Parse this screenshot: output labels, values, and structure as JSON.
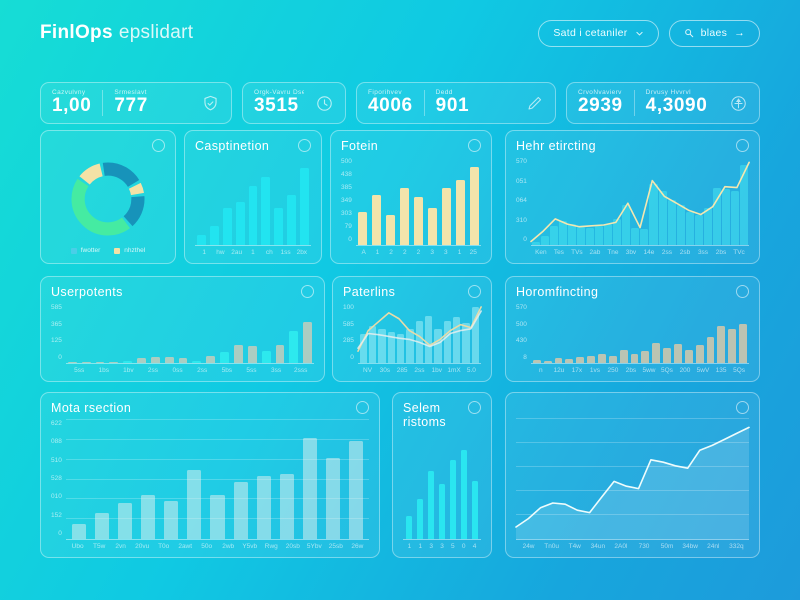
{
  "header": {
    "brand_bold": "FinlOps",
    "brand_light": "epslidart",
    "buttons": [
      {
        "label": "Satd i cetaniler",
        "icon": "chevron-down-icon"
      },
      {
        "label": "blaes",
        "icon": "search-icon",
        "trail": "→"
      }
    ]
  },
  "kpis": [
    {
      "stats": [
        {
          "label": "Cazvulvny",
          "value": "1,00"
        },
        {
          "label": "Srmeslavt",
          "value": "777"
        }
      ],
      "icon": "shield-icon"
    },
    {
      "stats": [
        {
          "label": "Orgk-Vavru Dse",
          "value": "3515"
        }
      ],
      "icon": "clock-icon"
    },
    {
      "stats": [
        {
          "label": "Fiporihvev",
          "value": "4006"
        },
        {
          "label": "Dedd",
          "value": "901"
        }
      ],
      "icon": "pencil-icon"
    },
    {
      "stats": [
        {
          "label": "CrvoNvavierv",
          "value": "2939"
        },
        {
          "label": "Drvusy Hvvrvl",
          "value": "4,3090"
        }
      ],
      "icon": "compass-icon"
    }
  ],
  "cards": {
    "donut": {
      "title": ""
    },
    "casptinetion": {
      "title": "Casptinetion"
    },
    "fotein": {
      "title": "Fotein"
    },
    "hehr": {
      "title": "Hehr etircting"
    },
    "userpotents": {
      "title": "Userpotents"
    },
    "paterlins": {
      "title": "Paterlins"
    },
    "horomfincting": {
      "title": "Horomfincting"
    },
    "mota": {
      "title": "Mota rsection"
    },
    "selem": {
      "title": "Selem ristoms"
    },
    "trend": {
      "title": ""
    }
  },
  "colors": {
    "accent_cyan": "#22e4f0",
    "cream": "#f2e4ab",
    "tan": "rgba(210,205,185,0.78)",
    "teal": "#1793ba",
    "green": "#45eba2",
    "white_line": "#eefcfc"
  },
  "chart_data": [
    {
      "id": "donut",
      "type": "donut",
      "start_pct": -15,
      "segments": [
        {
          "value": 12,
          "color": "#f4e2a6"
        },
        {
          "value": 20,
          "color": "#1793ba"
        },
        {
          "value": 6,
          "color": "#f4e2a6"
        },
        {
          "value": 16,
          "color": "#1793ba"
        },
        {
          "value": 46,
          "color": "#45eba2"
        }
      ],
      "legend": [
        {
          "label": "fwotter",
          "color": "#49cfe8"
        },
        {
          "label": "nhzthel",
          "color": "#f4e2a6"
        }
      ]
    },
    {
      "id": "casptinetion",
      "type": "bar",
      "color": "#22e4f0",
      "values": [
        12,
        22,
        42,
        50,
        68,
        78,
        42,
        58,
        88
      ],
      "xlabels": [
        "1",
        "hw",
        "2au",
        "1",
        "ch",
        "1ss",
        "2bx"
      ]
    },
    {
      "id": "fotein",
      "type": "bar",
      "color": "#f2e4ab",
      "values": [
        38,
        57,
        35,
        65,
        55,
        42,
        65,
        75,
        90
      ],
      "xlabels": [
        "A",
        "1",
        "2",
        "2",
        "2",
        "3",
        "3",
        "1",
        "25"
      ],
      "yticks": [
        "500",
        "438",
        "385",
        "349",
        "303",
        "79",
        "0"
      ]
    },
    {
      "id": "hehr",
      "type": "combo",
      "color": "rgba(70,228,240,0.55)",
      "bars": [
        3,
        10,
        22,
        28,
        24,
        21,
        20,
        22,
        24,
        30,
        46,
        20,
        18,
        70,
        62,
        52,
        46,
        38,
        34,
        42,
        66,
        64,
        62,
        92
      ],
      "lines": [
        {
          "name": "trend",
          "color": "#f4e7b0",
          "values": [
            4,
            16,
            30,
            24,
            21,
            22,
            23,
            26,
            48,
            20,
            74,
            56,
            48,
            40,
            35,
            44,
            67,
            66,
            95
          ]
        }
      ],
      "xlabels": [
        "Ken",
        "Tes",
        "TVs",
        "2ab",
        "Tne",
        "3bv",
        "14e",
        "2ss",
        "2sb",
        "3ss",
        "2bs",
        "TVc"
      ],
      "yticks": [
        "570",
        "051",
        "064",
        "310",
        "0"
      ]
    },
    {
      "id": "userpotents",
      "type": "bar",
      "values": [
        2,
        2,
        2,
        2,
        3,
        8,
        10,
        10,
        8,
        3,
        12,
        18,
        30,
        28,
        20,
        30,
        55,
        70
      ],
      "colors": [
        "rgba(210,205,185,0.78)",
        "rgba(210,205,185,0.78)",
        "rgba(210,205,185,0.78)",
        "rgba(210,205,185,0.78)",
        "#2de9ee",
        "rgba(210,205,185,0.78)",
        "rgba(210,205,185,0.78)",
        "rgba(210,205,185,0.78)",
        "rgba(210,205,185,0.78)",
        "#2de9ee",
        "rgba(210,205,185,0.78)",
        "#2de9ee",
        "rgba(210,205,185,0.78)",
        "rgba(210,205,185,0.78)",
        "#2de9ee",
        "rgba(210,205,185,0.78)",
        "#2de9ee",
        "rgba(210,205,185,0.78)"
      ],
      "xlabels": [
        "5ss",
        "1bs",
        "1bv",
        "2ss",
        "0ss",
        "2ss",
        "5bs",
        "5ss",
        "3ss",
        "2sss"
      ],
      "yticks": [
        "585",
        "365",
        "125",
        "0"
      ]
    },
    {
      "id": "paterlins",
      "type": "combo",
      "color": "rgba(150,235,245,0.6)",
      "bars": [
        50,
        62,
        58,
        52,
        50,
        58,
        72,
        80,
        58,
        72,
        78,
        68,
        95
      ],
      "lines": [
        {
          "name": "series-a",
          "color": "#e8dba8",
          "values": [
            20,
            55,
            70,
            85,
            75,
            55,
            45,
            30,
            40,
            55,
            65,
            60,
            95
          ]
        },
        {
          "name": "series-b",
          "color": "rgba(232,238,238,0.85)",
          "values": [
            25,
            50,
            48,
            45,
            42,
            40,
            35,
            28,
            35,
            50,
            55,
            58,
            88
          ]
        }
      ],
      "xlabels": [
        "NV",
        "30s",
        "285",
        "2ss",
        "1bv",
        "1mX",
        "5.0"
      ],
      "yticks": [
        "100",
        "585",
        "285",
        "0"
      ]
    },
    {
      "id": "horomfincting",
      "type": "bar",
      "color": "rgba(214,200,170,0.85)",
      "values": [
        5,
        4,
        8,
        6,
        10,
        12,
        15,
        12,
        22,
        15,
        20,
        34,
        25,
        32,
        22,
        30,
        44,
        62,
        58,
        66
      ],
      "xlabels": [
        "n",
        "12u",
        "17x",
        "1vs",
        "250",
        "2bs",
        "5ww",
        "5Qs",
        "200",
        "5wV",
        "135",
        "5Qs"
      ],
      "yticks": [
        "570",
        "500",
        "430",
        "8"
      ]
    },
    {
      "id": "mota",
      "type": "bar",
      "color": "rgba(232,242,240,0.5)",
      "grid": true,
      "values": [
        13,
        22,
        30,
        37,
        32,
        58,
        37,
        48,
        53,
        55,
        85,
        68,
        82
      ],
      "xlabels": [
        "Ubo",
        "T5w",
        "2vn",
        "20vu",
        "T0o",
        "2awt",
        "50o",
        "2wb",
        "Y5vb",
        "Rwg",
        "20sb",
        "5Ybv",
        "25sb",
        "26w"
      ],
      "yticks": [
        "622",
        "088",
        "510",
        "528",
        "010",
        "152",
        "0"
      ]
    },
    {
      "id": "selem",
      "type": "bar",
      "color": "#2ae6f0",
      "values": [
        22,
        38,
        65,
        52,
        75,
        85,
        55
      ],
      "xlabels": [
        "1",
        "1",
        "3",
        "3",
        "5",
        "0",
        "4"
      ]
    },
    {
      "id": "trend",
      "type": "area",
      "color": "#eefcfc",
      "fill": "rgba(255,255,255,0.14)",
      "grid": true,
      "gridcount": 5,
      "values": [
        10,
        17,
        26,
        30,
        29,
        24,
        22,
        35,
        48,
        44,
        42,
        66,
        64,
        61,
        59,
        74,
        78,
        83,
        88,
        93
      ],
      "xlabels": [
        "24w",
        "Tn0u",
        "T4w",
        "34un",
        "2A0l",
        "730",
        "50m",
        "34bw",
        "24nl",
        "332q"
      ]
    }
  ]
}
